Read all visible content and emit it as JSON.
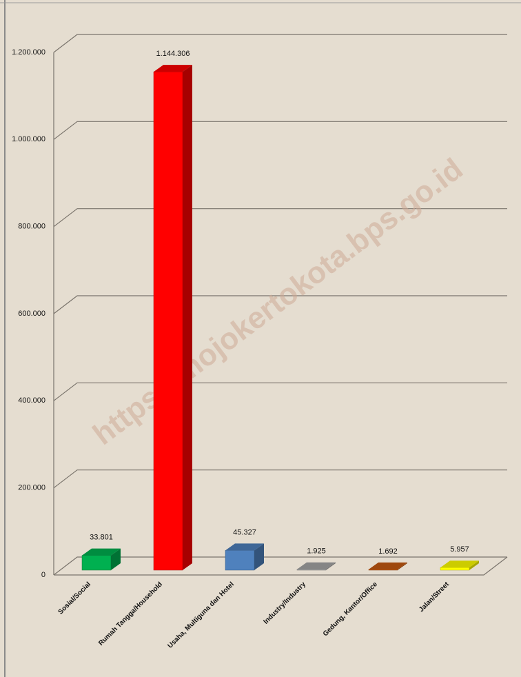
{
  "chart_data": {
    "type": "bar3d",
    "watermark": "https://mojokertokota.bps.go.id",
    "categories": [
      "Sosial/Social",
      "Rumah Tangga/Household",
      "Usaha, Multiguna dan Hotel",
      "Industry/Industry",
      "Gedung, Kantor/Office",
      "Jalan/Street"
    ],
    "values": [
      33801,
      1144306,
      45327,
      1925,
      1692,
      5957
    ],
    "value_labels": [
      "33.801",
      "1.144.306",
      "45.327",
      "1.925",
      "1.692",
      "5.957"
    ],
    "colors": [
      "#00b050",
      "#ff0000",
      "#4f81bd",
      "#a6a6a6",
      "#c55a11",
      "#ffff00"
    ],
    "ylim": [
      0,
      1200000
    ],
    "yticks": [
      0,
      {
        "value": 200000,
        "label": "200.000"
      },
      {
        "value": 400000,
        "label": "400.000"
      },
      {
        "value": 600000,
        "label": "600.000"
      },
      {
        "value": 800000,
        "label": "800.000"
      },
      {
        "value": 1000000,
        "label": "1.000.000"
      },
      {
        "value": 1200000,
        "label": "1.200.000"
      }
    ],
    "grid": true
  }
}
